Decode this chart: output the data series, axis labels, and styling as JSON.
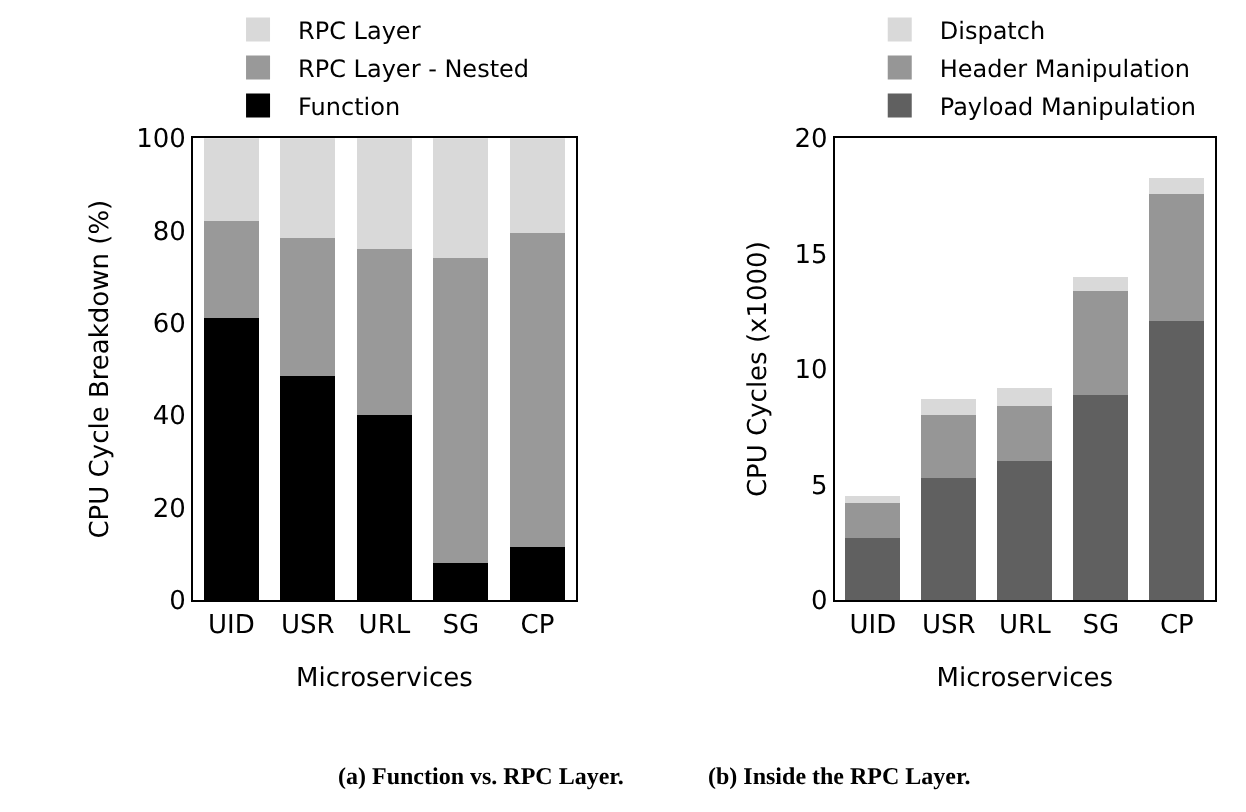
{
  "chart_data": [
    {
      "type": "bar",
      "title": "(a) Function vs. RPC Layer.",
      "xlabel": "Microservices",
      "ylabel": "CPU Cycle Breakdown (%)",
      "categories": [
        "UID",
        "USR",
        "URL",
        "SG",
        "CP"
      ],
      "stacked": true,
      "ylim": [
        0,
        100
      ],
      "yticks": [
        0,
        20,
        40,
        60,
        80,
        100
      ],
      "legend": "top",
      "series": [
        {
          "name": "Function",
          "color": "#000000",
          "values": [
            61,
            48.5,
            40,
            8,
            11.5
          ]
        },
        {
          "name": "RPC Layer - Nested",
          "color": "#999999",
          "values": [
            21,
            30,
            36,
            66,
            68
          ]
        },
        {
          "name": "RPC Layer",
          "color": "#d9d9d9",
          "values": [
            18,
            21.5,
            24,
            26,
            20.5
          ]
        }
      ]
    },
    {
      "type": "bar",
      "title": "(b) Inside the RPC Layer.",
      "xlabel": "Microservices",
      "ylabel": "CPU Cycles (x1000)",
      "categories": [
        "UID",
        "USR",
        "URL",
        "SG",
        "CP"
      ],
      "stacked": true,
      "ylim": [
        0,
        20
      ],
      "yticks": [
        0,
        5,
        10,
        15,
        20
      ],
      "legend": "top",
      "series": [
        {
          "name": "Payload Manipulation",
          "color": "#606060",
          "values": [
            2.7,
            5.3,
            6.0,
            8.9,
            12.1
          ]
        },
        {
          "name": "Header Manipulation",
          "color": "#969696",
          "values": [
            1.5,
            2.7,
            2.4,
            4.5,
            5.5
          ]
        },
        {
          "name": "Dispatch",
          "color": "#d9d9d9",
          "values": [
            0.3,
            0.7,
            0.8,
            0.6,
            0.7
          ]
        }
      ]
    }
  ]
}
